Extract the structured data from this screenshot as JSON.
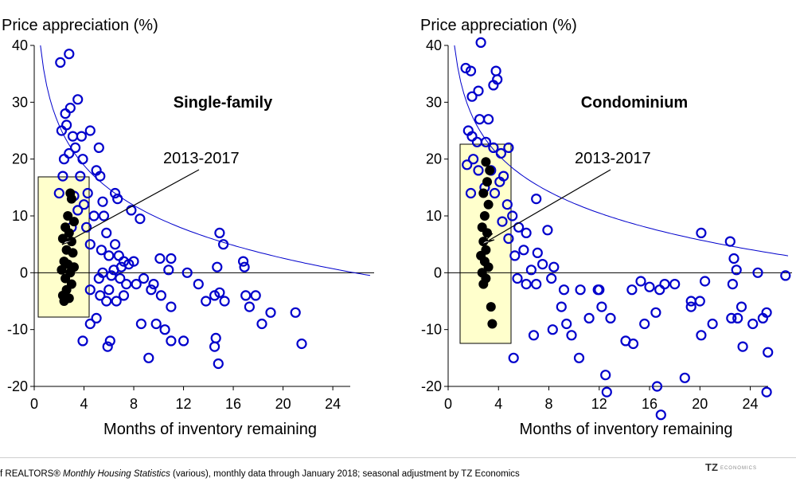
{
  "chart_data": [
    {
      "type": "scatter",
      "title": "Single-family",
      "ylabel": "Price appreciation (%)",
      "xlabel": "Months of inventory remaining",
      "xlim": [
        0,
        27
      ],
      "ylim": [
        -20,
        40
      ],
      "xticks": [
        "0",
        "4",
        "8",
        "12",
        "16",
        "20",
        "24"
      ],
      "yticks": [
        "40",
        "30",
        "20",
        "10",
        "0",
        "-10",
        "-20"
      ],
      "annotation": "2013-2017",
      "series": [
        {
          "color": "#0000cc",
          "marker": "open-circle",
          "points": [
            [
              2.1,
              37
            ],
            [
              2.8,
              38.5
            ],
            [
              3.5,
              30.5
            ],
            [
              2.5,
              28
            ],
            [
              2.9,
              29
            ],
            [
              2.2,
              25
            ],
            [
              2.6,
              26
            ],
            [
              3.1,
              24
            ],
            [
              3.8,
              24
            ],
            [
              4.5,
              25
            ],
            [
              5.2,
              22
            ],
            [
              2.4,
              20
            ],
            [
              2.8,
              21
            ],
            [
              3.3,
              22
            ],
            [
              3.9,
              20
            ],
            [
              5.0,
              18
            ],
            [
              5.3,
              17
            ],
            [
              2.3,
              17
            ],
            [
              3.7,
              17
            ],
            [
              4.3,
              14
            ],
            [
              2.0,
              14
            ],
            [
              3.2,
              13.5
            ],
            [
              4.0,
              12
            ],
            [
              5.5,
              12.5
            ],
            [
              6.5,
              14
            ],
            [
              6.7,
              13
            ],
            [
              3.5,
              11
            ],
            [
              4.8,
              10
            ],
            [
              5.6,
              10
            ],
            [
              7.8,
              11
            ],
            [
              8.5,
              9.5
            ],
            [
              3.0,
              8
            ],
            [
              4.2,
              8
            ],
            [
              5.8,
              7
            ],
            [
              6.5,
              5
            ],
            [
              4.5,
              5
            ],
            [
              5.4,
              4
            ],
            [
              6.0,
              3
            ],
            [
              6.8,
              3
            ],
            [
              7.2,
              2
            ],
            [
              7.6,
              1.5
            ],
            [
              8.0,
              2
            ],
            [
              7.0,
              1
            ],
            [
              6.4,
              0.5
            ],
            [
              5.5,
              0
            ],
            [
              6.2,
              -0.5
            ],
            [
              6.9,
              -1
            ],
            [
              7.4,
              -2
            ],
            [
              8.2,
              -2
            ],
            [
              8.8,
              -1
            ],
            [
              9.4,
              -3
            ],
            [
              6.0,
              -3
            ],
            [
              5.2,
              -1
            ],
            [
              4.5,
              -3
            ],
            [
              5.8,
              -5
            ],
            [
              6.6,
              -5
            ],
            [
              7.2,
              -4
            ],
            [
              8.6,
              -9
            ],
            [
              9.8,
              -9
            ],
            [
              10.5,
              -10
            ],
            [
              11.0,
              -6
            ],
            [
              10.2,
              -4
            ],
            [
              9.6,
              -2
            ],
            [
              10.1,
              2.5
            ],
            [
              10.8,
              0.5
            ],
            [
              11.0,
              2.5
            ],
            [
              12.3,
              0
            ],
            [
              13.2,
              -2
            ],
            [
              13.8,
              -5
            ],
            [
              14.5,
              -4
            ],
            [
              14.9,
              -3.5
            ],
            [
              15.3,
              -5
            ],
            [
              14.7,
              1
            ],
            [
              14.9,
              7
            ],
            [
              15.2,
              5
            ],
            [
              16.8,
              2
            ],
            [
              16.9,
              1
            ],
            [
              17.0,
              -4
            ],
            [
              17.3,
              -6
            ],
            [
              17.8,
              -4
            ],
            [
              18.3,
              -9
            ],
            [
              19.0,
              -7
            ],
            [
              21.0,
              -7
            ],
            [
              21.5,
              -12.5
            ],
            [
              14.6,
              -11.5
            ],
            [
              14.5,
              -13
            ],
            [
              14.8,
              -16
            ],
            [
              12.0,
              -12
            ],
            [
              11.0,
              -12
            ],
            [
              9.2,
              -15
            ],
            [
              5.9,
              -13
            ],
            [
              6.1,
              -12
            ],
            [
              3.9,
              -12
            ],
            [
              5.0,
              -8
            ],
            [
              4.5,
              -9
            ],
            [
              5.3,
              -4
            ]
          ]
        },
        {
          "color": "#000000",
          "marker": "filled-circle",
          "points": [
            [
              2.9,
              14
            ],
            [
              3.0,
              13
            ],
            [
              2.7,
              10
            ],
            [
              3.2,
              9
            ],
            [
              2.5,
              8
            ],
            [
              2.8,
              7
            ],
            [
              2.3,
              6
            ],
            [
              3.0,
              5.5
            ],
            [
              2.6,
              4
            ],
            [
              3.1,
              3.5
            ],
            [
              2.4,
              2
            ],
            [
              2.7,
              1.5
            ],
            [
              3.2,
              1
            ],
            [
              2.2,
              0.5
            ],
            [
              2.9,
              0
            ],
            [
              2.5,
              -1
            ],
            [
              3.0,
              -2
            ],
            [
              2.6,
              -3
            ],
            [
              2.3,
              -4
            ],
            [
              2.8,
              -4.5
            ],
            [
              2.4,
              -5
            ]
          ]
        }
      ]
    },
    {
      "type": "scatter",
      "title": "Condominium",
      "ylabel": "Price appreciation (%)",
      "xlabel": "Months of inventory remaining",
      "xlim": [
        0,
        27
      ],
      "ylim": [
        -20,
        40
      ],
      "xticks": [
        "0",
        "4",
        "8",
        "12",
        "16",
        "20",
        "24"
      ],
      "yticks": [
        "40",
        "30",
        "20",
        "10",
        "0",
        "-10",
        "-20"
      ],
      "annotation": "2013-2017",
      "series": [
        {
          "color": "#0000cc",
          "marker": "open-circle",
          "points": [
            [
              2.6,
              40.5
            ],
            [
              3.8,
              35.5
            ],
            [
              1.4,
              36
            ],
            [
              1.8,
              35.5
            ],
            [
              3.9,
              34
            ],
            [
              3.6,
              33
            ],
            [
              1.9,
              31
            ],
            [
              2.4,
              32
            ],
            [
              2.5,
              27
            ],
            [
              3.2,
              27
            ],
            [
              1.6,
              25
            ],
            [
              1.9,
              24
            ],
            [
              2.3,
              23
            ],
            [
              3.0,
              23
            ],
            [
              3.6,
              22
            ],
            [
              4.8,
              22
            ],
            [
              4.2,
              21
            ],
            [
              1.5,
              19
            ],
            [
              2.0,
              20
            ],
            [
              2.4,
              18
            ],
            [
              3.4,
              18
            ],
            [
              4.4,
              17
            ],
            [
              4.1,
              16
            ],
            [
              1.8,
              14
            ],
            [
              2.9,
              15
            ],
            [
              3.7,
              14
            ],
            [
              4.7,
              12
            ],
            [
              7.0,
              13
            ],
            [
              5.1,
              10
            ],
            [
              4.3,
              9
            ],
            [
              5.6,
              8
            ],
            [
              6.2,
              7
            ],
            [
              7.9,
              7.5
            ],
            [
              4.8,
              6
            ],
            [
              6.0,
              4
            ],
            [
              5.3,
              3
            ],
            [
              7.1,
              3.5
            ],
            [
              7.5,
              1.5
            ],
            [
              8.4,
              1
            ],
            [
              6.6,
              0.5
            ],
            [
              5.5,
              -1
            ],
            [
              6.2,
              -2
            ],
            [
              7.0,
              -2
            ],
            [
              8.2,
              -1
            ],
            [
              9.2,
              -3
            ],
            [
              10.5,
              -3
            ],
            [
              11.9,
              -3
            ],
            [
              12.0,
              -3
            ],
            [
              14.6,
              -3
            ],
            [
              15.3,
              -1.5
            ],
            [
              16.0,
              -2.5
            ],
            [
              16.8,
              -3
            ],
            [
              17.2,
              -2
            ],
            [
              18.0,
              -2
            ],
            [
              19.3,
              -5
            ],
            [
              20.0,
              -5
            ],
            [
              20.4,
              -1.5
            ],
            [
              20.1,
              7
            ],
            [
              22.4,
              5.5
            ],
            [
              22.7,
              2.5
            ],
            [
              22.9,
              0.5
            ],
            [
              22.6,
              -2
            ],
            [
              23.3,
              -6
            ],
            [
              23.0,
              -8
            ],
            [
              24.6,
              0
            ],
            [
              26.8,
              -0.5
            ],
            [
              25.3,
              -7
            ],
            [
              24.2,
              -9
            ],
            [
              25.0,
              -8
            ],
            [
              25.4,
              -14
            ],
            [
              25.3,
              -21
            ],
            [
              5.2,
              -15
            ],
            [
              6.8,
              -11
            ],
            [
              8.3,
              -10
            ],
            [
              9.0,
              -6
            ],
            [
              9.4,
              -9
            ],
            [
              9.8,
              -11
            ],
            [
              10.4,
              -15
            ],
            [
              11.2,
              -8
            ],
            [
              12.2,
              -6
            ],
            [
              12.9,
              -8
            ],
            [
              14.1,
              -12
            ],
            [
              14.7,
              -12.5
            ],
            [
              15.6,
              -9
            ],
            [
              16.5,
              -7
            ],
            [
              16.6,
              -20
            ],
            [
              16.9,
              -25
            ],
            [
              12.5,
              -18
            ],
            [
              12.6,
              -21
            ],
            [
              18.8,
              -18.5
            ],
            [
              19.3,
              -6
            ],
            [
              20.1,
              -11
            ],
            [
              21.0,
              -9
            ],
            [
              23.4,
              -13
            ],
            [
              22.5,
              -8
            ]
          ]
        },
        {
          "color": "#000000",
          "marker": "filled-circle",
          "points": [
            [
              3.0,
              19.5
            ],
            [
              3.3,
              18
            ],
            [
              3.1,
              16
            ],
            [
              2.8,
              14
            ],
            [
              3.2,
              12
            ],
            [
              2.9,
              10
            ],
            [
              2.7,
              8
            ],
            [
              3.1,
              7
            ],
            [
              2.8,
              5.5
            ],
            [
              3.0,
              4
            ],
            [
              2.6,
              3
            ],
            [
              2.9,
              2
            ],
            [
              3.2,
              1
            ],
            [
              2.7,
              0
            ],
            [
              3.0,
              -1
            ],
            [
              2.8,
              -2
            ],
            [
              3.4,
              -6
            ],
            [
              3.5,
              -9
            ]
          ]
        }
      ]
    }
  ],
  "footer": {
    "source_prefix": "f REALTORS® ",
    "source_title": "Monthly Housing Statistics",
    "source_suffix": " (various), monthly data through January 2018; seasonal adjustment by TZ Economics",
    "logo_text": "TZ",
    "logo_small": "ECONOMICS"
  }
}
